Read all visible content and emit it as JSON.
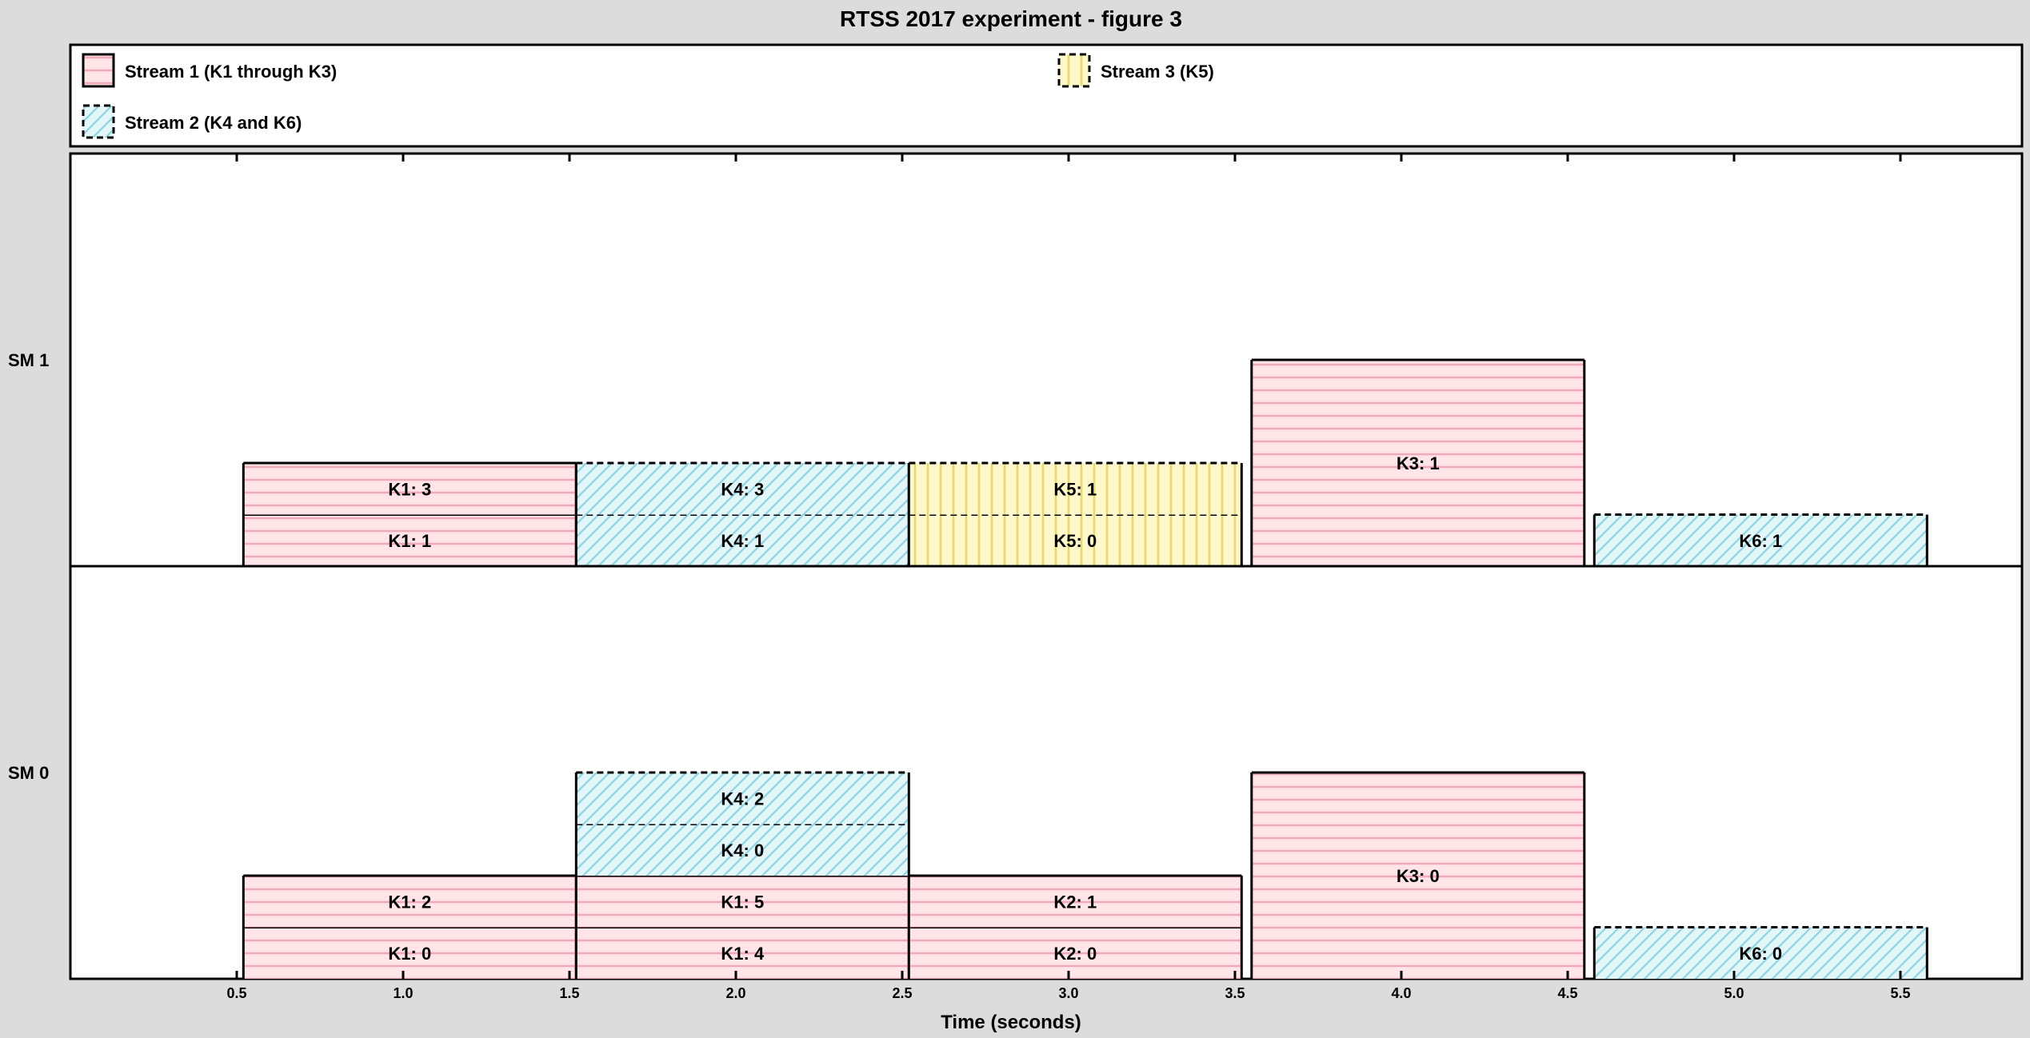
{
  "chart_data": {
    "type": "gantt",
    "title": "RTSS 2017 experiment - figure 3",
    "xlabel": "Time (seconds)",
    "ylabel": "",
    "xlim": [
      0.0,
      5.9
    ],
    "x_ticks": [
      "0.5",
      "1.0",
      "1.5",
      "2.0",
      "2.5",
      "3.0",
      "3.5",
      "4.0",
      "4.5",
      "5.0",
      "5.5"
    ],
    "rows": [
      {
        "label": "SM 0",
        "index": 0
      },
      {
        "label": "SM 1",
        "index": 1
      }
    ],
    "legend": [
      {
        "label": "Stream 1 (K1 through K3)",
        "pattern": "horizontal",
        "fill": "#ffe4e8",
        "stroke_color": "#f4a9b6",
        "border": "solid"
      },
      {
        "label": "Stream 3 (K5)",
        "pattern": "vertical",
        "fill": "#fff8cc",
        "stroke_color": "#e6d86a",
        "border": "dashed"
      },
      {
        "label": "Stream 2 (K4 and K6)",
        "pattern": "diagonal",
        "fill": "#e3f6f9",
        "stroke_color": "#8fd4e0",
        "border": "dashed"
      }
    ],
    "legend_placement": "top",
    "grid": false,
    "blocks": [
      {
        "label": "K1: 0",
        "sm": 0,
        "start": 0.52,
        "end": 1.52,
        "level": 0,
        "stream": 0
      },
      {
        "label": "K1: 2",
        "sm": 0,
        "start": 0.52,
        "end": 1.52,
        "level": 1,
        "stream": 0
      },
      {
        "label": "K1: 1",
        "sm": 1,
        "start": 0.52,
        "end": 1.52,
        "level": 0,
        "stream": 0
      },
      {
        "label": "K1: 3",
        "sm": 1,
        "start": 0.52,
        "end": 1.52,
        "level": 1,
        "stream": 0
      },
      {
        "label": "K1: 4",
        "sm": 0,
        "start": 1.52,
        "end": 2.52,
        "level": 0,
        "stream": 0
      },
      {
        "label": "K1: 5",
        "sm": 0,
        "start": 1.52,
        "end": 2.52,
        "level": 1,
        "stream": 0
      },
      {
        "label": "K4: 0",
        "sm": 0,
        "start": 1.52,
        "end": 2.52,
        "level": 2,
        "stream": 2
      },
      {
        "label": "K4: 2",
        "sm": 0,
        "start": 1.52,
        "end": 2.52,
        "level": 3,
        "stream": 2
      },
      {
        "label": "K4: 1",
        "sm": 1,
        "start": 1.52,
        "end": 2.52,
        "level": 0,
        "stream": 2
      },
      {
        "label": "K4: 3",
        "sm": 1,
        "start": 1.52,
        "end": 2.52,
        "level": 1,
        "stream": 2
      },
      {
        "label": "K2: 0",
        "sm": 0,
        "start": 2.52,
        "end": 3.52,
        "level": 0,
        "stream": 0
      },
      {
        "label": "K2: 1",
        "sm": 0,
        "start": 2.52,
        "end": 3.52,
        "level": 1,
        "stream": 0
      },
      {
        "label": "K5: 0",
        "sm": 1,
        "start": 2.52,
        "end": 3.52,
        "level": 0,
        "stream": 1
      },
      {
        "label": "K5: 1",
        "sm": 1,
        "start": 2.52,
        "end": 3.52,
        "level": 1,
        "stream": 1
      },
      {
        "label": "K3: 0",
        "sm": 0,
        "start": 3.55,
        "end": 4.55,
        "level": 0,
        "stream": 0,
        "span": 4
      },
      {
        "label": "K3: 1",
        "sm": 1,
        "start": 3.55,
        "end": 4.55,
        "level": 0,
        "stream": 0,
        "span": 4
      },
      {
        "label": "K6: 0",
        "sm": 0,
        "start": 4.58,
        "end": 5.58,
        "level": 0,
        "stream": 2
      },
      {
        "label": "K6: 1",
        "sm": 1,
        "start": 4.58,
        "end": 5.58,
        "level": 0,
        "stream": 2
      }
    ]
  }
}
